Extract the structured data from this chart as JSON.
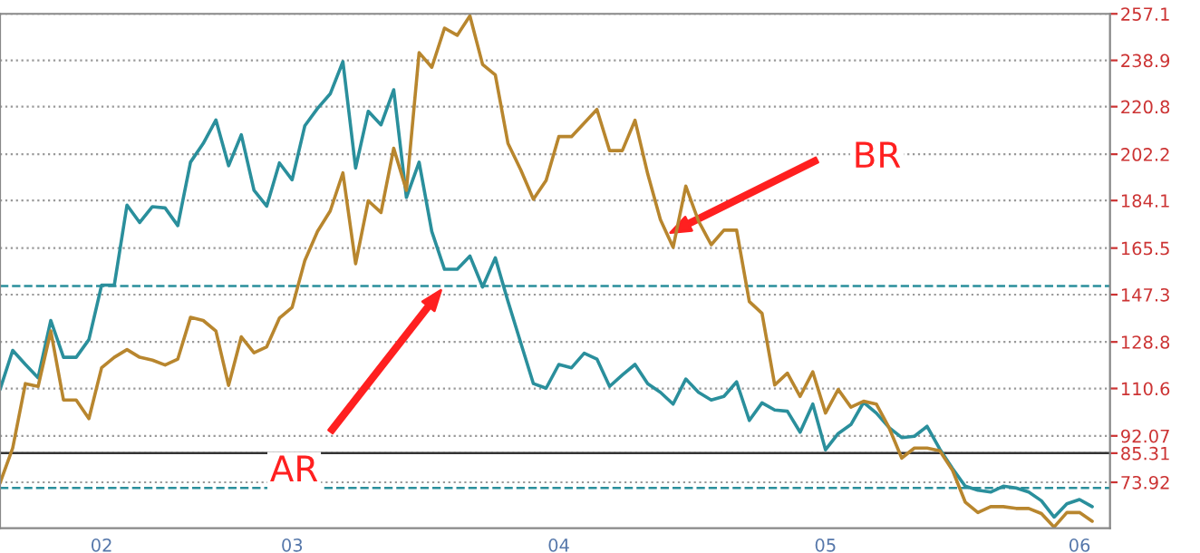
{
  "chart_data": {
    "type": "line",
    "categories": [
      null,
      null,
      null,
      null,
      null,
      null,
      null,
      null,
      "02",
      null,
      null,
      null,
      null,
      null,
      null,
      null,
      null,
      null,
      null,
      null,
      null,
      null,
      null,
      "03",
      null,
      null,
      null,
      null,
      null,
      null,
      null,
      null,
      null,
      null,
      null,
      null,
      null,
      null,
      null,
      null,
      null,
      null,
      null,
      null,
      "04",
      null,
      null,
      null,
      null,
      null,
      null,
      null,
      null,
      null,
      null,
      null,
      null,
      null,
      null,
      null,
      null,
      null,
      null,
      null,
      null,
      "05",
      null,
      null,
      null,
      null,
      null,
      null,
      null,
      null,
      null,
      null,
      null,
      null,
      null,
      null,
      null,
      null,
      null,
      null,
      null,
      "06",
      null
    ],
    "series": [
      {
        "color": "#2a8f9c",
        "values": [
          110.2,
          125.5,
          120.0,
          114.8,
          137.2,
          122.8,
          122.8,
          129.7,
          151.0,
          151.0,
          182.3,
          175.5,
          181.7,
          181.2,
          174.3,
          199.1,
          206.4,
          215.6,
          197.7,
          209.8,
          188.1,
          181.9,
          198.8,
          192.2,
          213.3,
          220.1,
          225.8,
          238.4,
          196.8,
          219.0,
          213.7,
          227.4,
          185.3,
          199.1,
          172.0,
          157.2,
          157.2,
          162.4,
          150.3,
          161.7,
          144.6,
          128.5,
          112.5,
          110.7,
          120.0,
          118.7,
          124.4,
          122.1,
          111.4,
          115.9,
          120.0,
          112.5,
          109.1,
          104.5,
          114.3,
          109.1,
          106.1,
          107.5,
          113.2,
          98.1,
          105.0,
          102.2,
          101.7,
          93.5,
          104.5,
          86.6,
          93.0,
          96.5,
          105.2,
          101.0,
          95.3,
          91.4,
          91.9,
          95.8,
          86.9,
          79.3,
          72.4,
          70.8,
          70.1,
          72.4,
          71.7,
          70.1,
          66.7,
          60.3,
          65.5,
          67.2,
          64.4
        ]
      },
      {
        "color": "#b8862e",
        "values": [
          73.6,
          87.3,
          112.5,
          111.4,
          133.1,
          106.1,
          106.1,
          98.8,
          118.7,
          122.8,
          125.8,
          122.8,
          121.7,
          119.8,
          122.1,
          138.4,
          137.2,
          133.1,
          111.8,
          130.8,
          124.6,
          126.9,
          138.1,
          142.3,
          160.6,
          172.0,
          180.0,
          194.9,
          159.4,
          184.0,
          179.4,
          204.5,
          188.1,
          241.9,
          236.2,
          251.5,
          248.7,
          256.3,
          237.3,
          233.2,
          206.4,
          196.1,
          184.6,
          192.0,
          209.1,
          209.1,
          214.4,
          219.7,
          203.6,
          203.6,
          215.5,
          194.5,
          176.6,
          165.8,
          189.7,
          176.1,
          166.8,
          172.5,
          172.5,
          144.6,
          140.0,
          112.0,
          116.6,
          107.5,
          117.1,
          101.0,
          110.2,
          103.3,
          105.6,
          104.5,
          95.3,
          83.4,
          87.3,
          87.3,
          86.2,
          78.6,
          66.2,
          62.1,
          64.4,
          64.4,
          63.7,
          63.7,
          61.7,
          56.4,
          62.1,
          62.1,
          58.7
        ]
      }
    ],
    "ylim": [
      56,
      257.1
    ],
    "yticks": [
      73.92,
      85.31,
      92.07,
      110.6,
      128.8,
      147.3,
      165.5,
      184.1,
      202.2,
      220.8,
      238.9,
      257.1
    ],
    "ref_lines": [
      {
        "axis": "y",
        "value": 150.7,
        "color": "#2a8f9c",
        "line_style": "dashed"
      },
      {
        "axis": "y",
        "value": 85.31,
        "color": "#333333",
        "line_style": "solid"
      },
      {
        "axis": "y",
        "value": 71.7,
        "color": "#2a8f9c",
        "line_style": "dashed"
      }
    ],
    "annotations": [
      "AR",
      "BR"
    ],
    "grid": "y",
    "legend": false,
    "marker": "none",
    "line_style": "solid"
  }
}
